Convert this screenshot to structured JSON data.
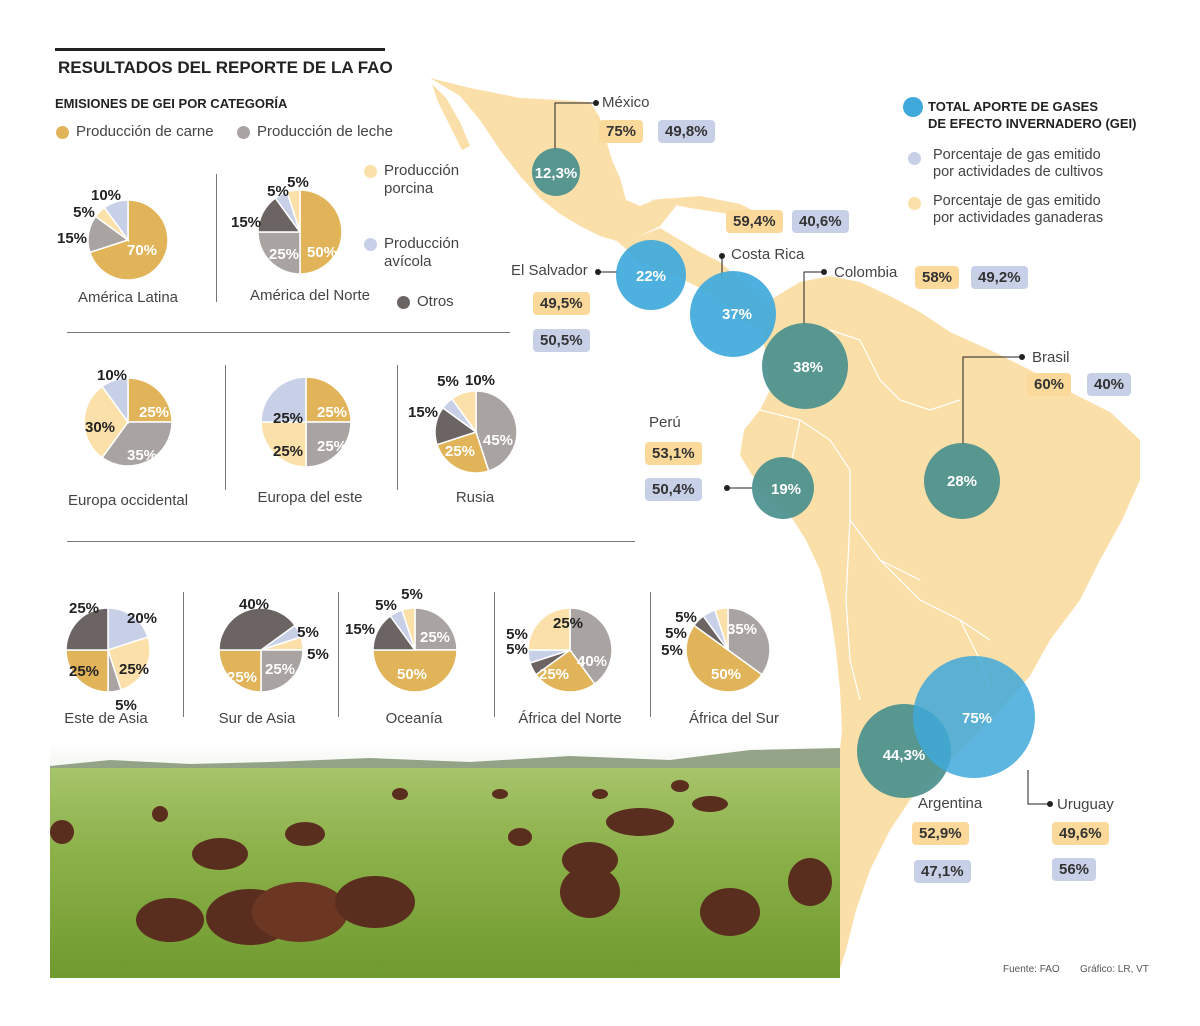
{
  "header": {
    "title": "RESULTADOS DEL REPORTE DE LA FAO",
    "subtitle": "EMISIONES DE GEI POR CATEGORÍA"
  },
  "categories": {
    "meat": "Producción de carne",
    "milk": "Producción de leche",
    "pork_line1": "Producción",
    "pork_line2": "porcina",
    "poultry_line1": "Producción",
    "poultry_line2": "avícola",
    "other": "Otros"
  },
  "colors": {
    "meat": "#e2b459",
    "milk": "#a9a4a2",
    "pork": "#fbe0aa",
    "poultry": "#c8d0e8",
    "other": "#6b6462",
    "map_land": "#fbdfa9",
    "bubble_total": "#3fa9db",
    "bubble_teal": "#4a8f8e",
    "label_crops": "#c8d0e8",
    "label_livestock": "#fbd99b"
  },
  "chart_data": [
    {
      "type": "pie",
      "name": "América Latina",
      "slices": [
        {
          "category": "Producción de carne",
          "value": 70,
          "label": "70%"
        },
        {
          "category": "Producción de leche",
          "value": 15,
          "label": "15%"
        },
        {
          "category": "Producción porcina",
          "value": 5,
          "label": "5%"
        },
        {
          "category": "Producción avícola",
          "value": 10,
          "label": "10%"
        }
      ]
    },
    {
      "type": "pie",
      "name": "América del Norte",
      "slices": [
        {
          "category": "Producción de carne",
          "value": 50,
          "label": "50%"
        },
        {
          "category": "Producción de leche",
          "value": 25,
          "label": "25%"
        },
        {
          "category": "Otros",
          "value": 15,
          "label": "15%"
        },
        {
          "category": "Producción avícola",
          "value": 5,
          "label": "5%"
        },
        {
          "category": "Producción porcina",
          "value": 5,
          "label": "5%"
        }
      ]
    },
    {
      "type": "pie",
      "name": "Europa occidental",
      "slices": [
        {
          "category": "Producción de carne",
          "value": 25,
          "label": "25%"
        },
        {
          "category": "Producción de leche",
          "value": 35,
          "label": "35%"
        },
        {
          "category": "Producción porcina",
          "value": 30,
          "label": "30%"
        },
        {
          "category": "Producción avícola",
          "value": 10,
          "label": "10%"
        }
      ]
    },
    {
      "type": "pie",
      "name": "Europa del este",
      "slices": [
        {
          "category": "Producción de carne",
          "value": 25,
          "label": "25%"
        },
        {
          "category": "Producción de leche",
          "value": 25,
          "label": "25%"
        },
        {
          "category": "Producción porcina",
          "value": 25,
          "label": "25%"
        },
        {
          "category": "Producción avícola",
          "value": 25,
          "label": "25%"
        }
      ]
    },
    {
      "type": "pie",
      "name": "Rusia",
      "slices": [
        {
          "category": "Producción de leche",
          "value": 45,
          "label": "45%"
        },
        {
          "category": "Producción de carne",
          "value": 25,
          "label": "25%"
        },
        {
          "category": "Otros",
          "value": 15,
          "label": "15%"
        },
        {
          "category": "Producción avícola",
          "value": 5,
          "label": "5%"
        },
        {
          "category": "Producción porcina",
          "value": 10,
          "label": "10%"
        }
      ]
    },
    {
      "type": "pie",
      "name": "Este de Asia",
      "slices": [
        {
          "category": "Producción avícola",
          "value": 20,
          "label": "20%"
        },
        {
          "category": "Producción porcina",
          "value": 25,
          "label": "25%"
        },
        {
          "category": "Producción de leche",
          "value": 5,
          "label": "5%"
        },
        {
          "category": "Producción de carne",
          "value": 25,
          "label": "25%"
        },
        {
          "category": "Otros",
          "value": 25,
          "label": "25%"
        }
      ]
    },
    {
      "type": "pie",
      "name": "Sur de Asia",
      "slices": [
        {
          "category": "Producción avícola",
          "value": 5,
          "label": "5%"
        },
        {
          "category": "Producción porcina",
          "value": 5,
          "label": "5%"
        },
        {
          "category": "Producción de leche",
          "value": 25,
          "label": "25%"
        },
        {
          "category": "Producción de carne",
          "value": 25,
          "label": "25%"
        },
        {
          "category": "Otros",
          "value": 40,
          "label": "40%"
        }
      ]
    },
    {
      "type": "pie",
      "name": "Oceanía",
      "slices": [
        {
          "category": "Producción de leche",
          "value": 25,
          "label": "25%"
        },
        {
          "category": "Producción de carne",
          "value": 50,
          "label": "50%"
        },
        {
          "category": "Otros",
          "value": 15,
          "label": "15%"
        },
        {
          "category": "Producción avícola",
          "value": 5,
          "label": "5%"
        },
        {
          "category": "Producción porcina",
          "value": 5,
          "label": "5%"
        }
      ]
    },
    {
      "type": "pie",
      "name": "África del Norte",
      "slices": [
        {
          "category": "Producción de leche",
          "value": 40,
          "label": "40%"
        },
        {
          "category": "Producción de carne",
          "value": 25,
          "label": "25%"
        },
        {
          "category": "Otros",
          "value": 5,
          "label": "5%"
        },
        {
          "category": "Producción avícola",
          "value": 5,
          "label": "5%"
        },
        {
          "category": "Producción porcina",
          "value": 25,
          "label": "25%"
        }
      ]
    },
    {
      "type": "pie",
      "name": "África del Sur",
      "slices": [
        {
          "category": "Producción de leche",
          "value": 35,
          "label": "35%"
        },
        {
          "category": "Producción de carne",
          "value": 50,
          "label": "50%"
        },
        {
          "category": "Otros",
          "value": 5,
          "label": "5%"
        },
        {
          "category": "Producción avícola",
          "value": 5,
          "label": "5%"
        },
        {
          "category": "Producción porcina",
          "value": 5,
          "label": "5%"
        }
      ]
    },
    {
      "type": "bubble-map",
      "title_line1": "TOTAL APORTE DE GASES",
      "title_line2": "DE EFECTO INVERNADERO (GEI)",
      "legend_crops_line1": "Porcentaje de gas emitido",
      "legend_crops_line2": "por actividades de cultivos",
      "legend_livestock_line1": "Porcentaje de gas emitido",
      "legend_livestock_line2": "por actividades ganaderas",
      "countries": [
        {
          "name": "México",
          "total": "12,3%",
          "livestock": "75%",
          "crops": "49,8%"
        },
        {
          "name": "El Salvador",
          "total": "22%",
          "livestock": "49,5%",
          "crops": "50,5%"
        },
        {
          "name": "Costa Rica",
          "total": "37%",
          "livestock": "59,4%",
          "crops": "40,6%"
        },
        {
          "name": "Colombia",
          "total": "38%",
          "livestock": "58%",
          "crops": "49,2%"
        },
        {
          "name": "Brasil",
          "total": "28%",
          "livestock": "60%",
          "crops": "40%"
        },
        {
          "name": "Perú",
          "total": "19%",
          "livestock": "53,1%",
          "crops": "50,4%"
        },
        {
          "name": "Argentina",
          "total": "44,3%",
          "livestock": "52,9%",
          "crops": "47,1%"
        },
        {
          "name": "Uruguay",
          "total": "75%",
          "livestock": "49,6%",
          "crops": "56%"
        }
      ]
    }
  ],
  "footer": {
    "source": "Fuente: FAO",
    "credit": "Gráfico: LR, VT"
  }
}
